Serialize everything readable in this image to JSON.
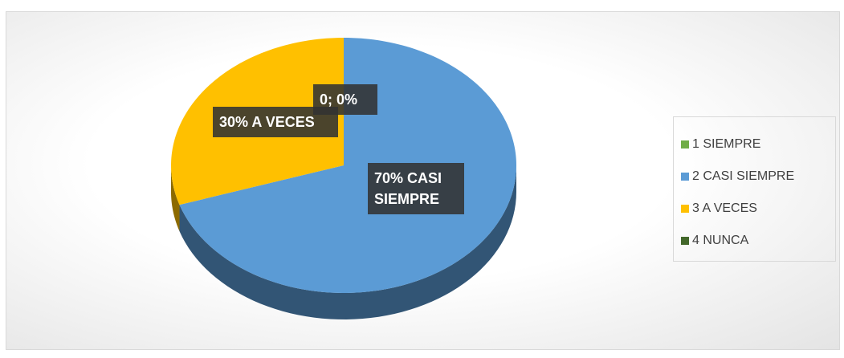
{
  "chart_data": {
    "type": "pie",
    "categories": [
      "1 SIEMPRE",
      "2 CASI SIEMPRE",
      "3 A VECES",
      "4 NUNCA"
    ],
    "values": [
      0,
      70,
      30,
      0
    ],
    "value_labels": [
      "0; 0%",
      "70% CASI SIEMPRE",
      "30% A VECES",
      null
    ],
    "colors": [
      "#70ad47",
      "#5b9bd5",
      "#ffc000",
      "#43682b"
    ],
    "legend": "right",
    "three_d": true
  }
}
